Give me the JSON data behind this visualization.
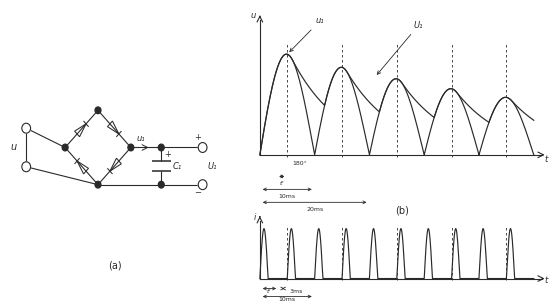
{
  "fig_width": 5.53,
  "fig_height": 3.06,
  "dpi": 100,
  "bg_color": "#ffffff",
  "line_color": "#2a2a2a",
  "label_a": "(a)",
  "label_b": "(b)",
  "top_xlabel": "t",
  "top_ylabel": "u",
  "top_u1_label": "u₁",
  "top_U1_label": "U₁",
  "top_180_label": "180°",
  "top_tc_label": "tᶜ",
  "top_10ms_label": "10ms",
  "top_20ms_label": "20ms",
  "bot_xlabel": "t",
  "bot_ylabel": "i",
  "bot_tc_label": "tᶜ",
  "bot_3ms_label": "3ms",
  "bot_10ms_label": "10ms",
  "circuit_u_label": "u",
  "circuit_u1_label": "u₁",
  "circuit_U1_label": "U₁",
  "circuit_C1_label": "C₁",
  "circuit_plus_label": "+",
  "circuit_minus_label": "−"
}
